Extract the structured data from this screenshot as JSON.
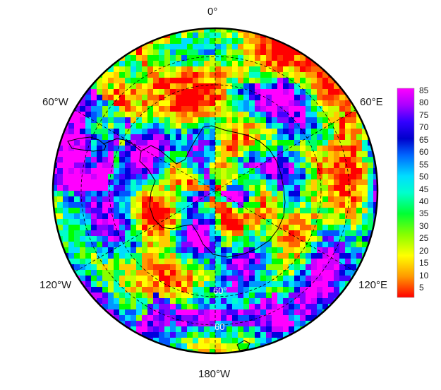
{
  "map": {
    "projection": "south-polar-stereographic",
    "longitude_labels": {
      "top": "0°",
      "upper_left": "60°W",
      "upper_right": "60°E",
      "lower_left": "120°W",
      "lower_right": "120°E",
      "bottom": "180°W"
    },
    "latitude_labels": [
      "60°",
      "60"
    ],
    "field": "gridded scalar field, values roughly 0–85, color shaded",
    "dominant_features": [
      "Antarctic continent outline at center",
      "magenta/purple maxima near 75°W and near 150°W",
      "red minima belts near 60°E–120°E and 120°W"
    ]
  },
  "colorbar": {
    "ticks": [
      "85",
      "80",
      "75",
      "70",
      "65",
      "60",
      "55",
      "50",
      "45",
      "40",
      "35",
      "30",
      "25",
      "20",
      "15",
      "10",
      "5"
    ],
    "min": 1,
    "max": 87,
    "colors_top_to_bottom": [
      "#ff00ff",
      "#aa00ff",
      "#6600ff",
      "#0000dd",
      "#0055ff",
      "#0099ff",
      "#00ccff",
      "#00ffee",
      "#00ff99",
      "#00ff00",
      "#55ff00",
      "#aaff00",
      "#dddd00",
      "#ffff00",
      "#ffaa00",
      "#ff6600",
      "#ff0000"
    ]
  }
}
